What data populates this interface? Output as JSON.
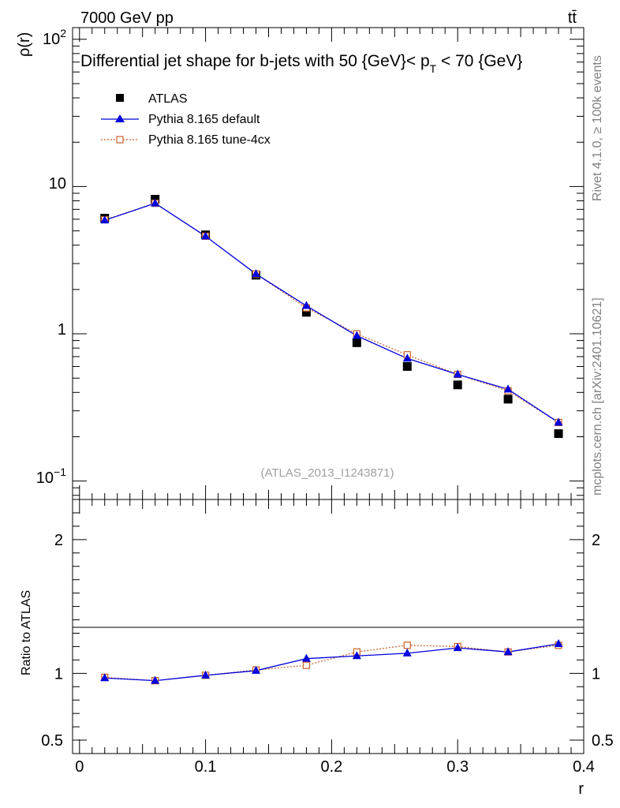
{
  "header": {
    "energy_label": "7000 GeV pp",
    "process_label": "tt̄",
    "rivet_label": "Rivet 4.1.0, ≥ 100k events",
    "mcplots_label": "mcplots.cern.ch [arXiv:2401.10621]",
    "analysis_label": "(ATLAS_2013_I1243871)"
  },
  "chart_data": [
    {
      "type": "scatter",
      "title": "Differential jet shape for b-jets with 50 {GeV}< p_T < 70 {GeV}",
      "title_main": "Differential jet shape for b-jets with 50 {GeV}< p",
      "title_sub": "T",
      "title_tail": " < 70 {GeV}",
      "ylabel": "ρ(r)",
      "xlabel": "r",
      "yscale": "log",
      "ylim": [
        0.075,
        120
      ],
      "xlim": [
        -0.0055,
        0.4
      ],
      "ytick_labels": [
        "10",
        "1"
      ],
      "ytick_major_text": [
        "10²",
        "10⁻¹"
      ],
      "x": [
        0.02,
        0.06,
        0.1,
        0.14,
        0.18,
        0.22,
        0.26,
        0.3,
        0.34,
        0.38
      ],
      "series": [
        {
          "name": "ATLAS",
          "marker": "filled-square",
          "color": "#000000",
          "values": [
            6.1,
            8.2,
            4.7,
            2.5,
            1.4,
            0.87,
            0.6,
            0.45,
            0.36,
            0.21
          ]
        },
        {
          "name": "Pythia 8.165 default",
          "marker": "filled-triangle",
          "color": "#0000dd",
          "values": [
            5.9,
            7.7,
            4.6,
            2.55,
            1.55,
            0.97,
            0.68,
            0.53,
            0.42,
            0.25
          ]
        },
        {
          "name": "Pythia 8.165 tune-4cx",
          "marker": "open-square",
          "color": "#c8602a",
          "values": [
            5.95,
            7.7,
            4.6,
            2.55,
            1.5,
            1.0,
            0.72,
            0.53,
            0.41,
            0.25
          ]
        }
      ]
    },
    {
      "type": "line",
      "ylabel": "Ratio to ATLAS",
      "xlabel": "r",
      "ylim": [
        0.4,
        2.3
      ],
      "xlim": [
        -0.0055,
        0.4
      ],
      "yticks": [
        0.5,
        1,
        2
      ],
      "ytick_labels": [
        "0.5",
        "1",
        "2"
      ],
      "xticks": [
        0,
        0.1,
        0.2,
        0.3,
        0.4
      ],
      "xtick_labels": [
        "0",
        "0.1",
        "0.2",
        "0.3",
        "0.4"
      ],
      "x": [
        0.02,
        0.06,
        0.1,
        0.14,
        0.18,
        0.22,
        0.26,
        0.3,
        0.34,
        0.38
      ],
      "series": [
        {
          "name": "Pythia 8.165 default",
          "color": "#0000dd",
          "values": [
            0.965,
            0.945,
            0.985,
            1.02,
            1.11,
            1.13,
            1.15,
            1.19,
            1.16,
            1.22
          ]
        },
        {
          "name": "Pythia 8.165 tune-4cx",
          "color": "#c8602a",
          "values": [
            0.97,
            0.945,
            0.985,
            1.025,
            1.06,
            1.16,
            1.21,
            1.2,
            1.16,
            1.21
          ]
        }
      ]
    }
  ]
}
